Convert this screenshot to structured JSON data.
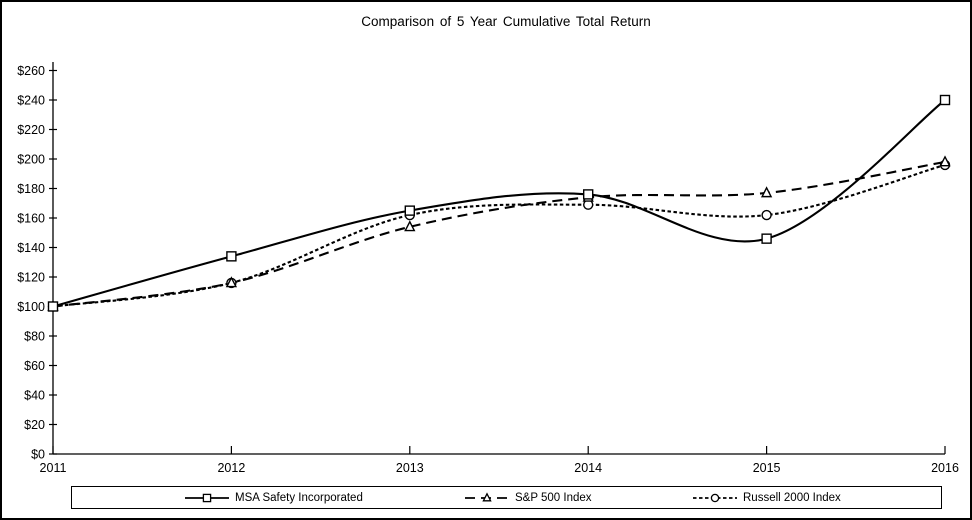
{
  "chart_data": {
    "type": "line",
    "title": "Comparison of 5 Year Cumulative Total Return",
    "x_labels": [
      "2011",
      "2012",
      "2013",
      "2014",
      "2015",
      "2016"
    ],
    "y_tick_labels": [
      "$260",
      "$240",
      "$220",
      "$200",
      "$180",
      "$160",
      "$140",
      "$120",
      "$100",
      "$80",
      "$60",
      "$40",
      "$20",
      "$0"
    ],
    "ylim": [
      0,
      260
    ],
    "y_tick_step": 20,
    "grid": false,
    "legend_position": "bottom",
    "line_smoothing": true,
    "colors": {
      "line": "#000000",
      "background": "#ffffff",
      "border": "#000000"
    },
    "series": [
      {
        "name": "MSA Safety Incorporated",
        "marker": "square",
        "line_style": "solid",
        "values": [
          100,
          134,
          165,
          176,
          146,
          240
        ]
      },
      {
        "name": "S&P 500 Index",
        "marker": "triangle",
        "line_style": "long-dash",
        "values": [
          100,
          116,
          154,
          174,
          177,
          198
        ]
      },
      {
        "name": "Russell 2000 Index",
        "marker": "circle",
        "line_style": "short-dash",
        "values": [
          100,
          116,
          162,
          169,
          162,
          196
        ]
      }
    ]
  }
}
